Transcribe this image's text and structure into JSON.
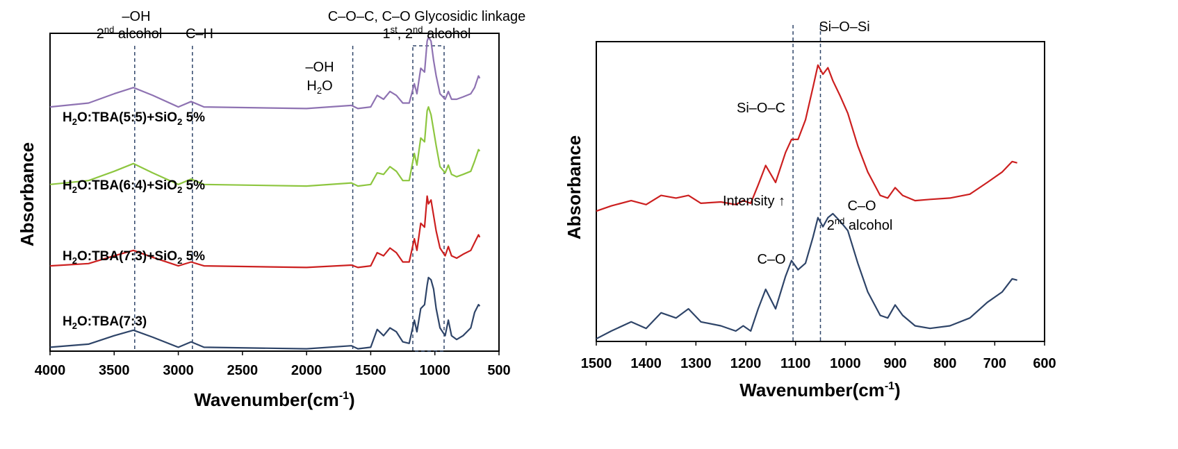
{
  "chart_data": [
    {
      "type": "line",
      "title": "",
      "xlabel": "Wavenumber(cm",
      "xlabel_sup": "-1",
      "xlabel_end": ")",
      "ylabel": "Absorbance",
      "xlim": [
        4000,
        500
      ],
      "x_reversed": true,
      "xticks": [
        "4000",
        "3500",
        "3000",
        "2500",
        "2000",
        "1500",
        "1000",
        "500"
      ],
      "ylim": [
        0,
        4.1
      ],
      "yticks_shown": false,
      "series": [
        {
          "name": "H2O:TBA(7:3)",
          "label_main": "H",
          "label_sub1": "2",
          "label_mid": "O:TBA(7:3)",
          "label_sub2": "",
          "label_end": "",
          "color": "#2e4468",
          "offset": 0,
          "points": [
            [
              4000,
              0.05
            ],
            [
              3700,
              0.09
            ],
            [
              3500,
              0.2
            ],
            [
              3350,
              0.27
            ],
            [
              3200,
              0.18
            ],
            [
              3000,
              0.05
            ],
            [
              2900,
              0.12
            ],
            [
              2800,
              0.05
            ],
            [
              2000,
              0.03
            ],
            [
              1650,
              0.07
            ],
            [
              1600,
              0.03
            ],
            [
              1500,
              0.05
            ],
            [
              1450,
              0.28
            ],
            [
              1400,
              0.2
            ],
            [
              1350,
              0.3
            ],
            [
              1300,
              0.25
            ],
            [
              1250,
              0.12
            ],
            [
              1200,
              0.1
            ],
            [
              1160,
              0.4
            ],
            [
              1140,
              0.25
            ],
            [
              1110,
              0.55
            ],
            [
              1080,
              0.6
            ],
            [
              1060,
              0.85
            ],
            [
              1050,
              0.95
            ],
            [
              1030,
              0.92
            ],
            [
              1010,
              0.8
            ],
            [
              990,
              0.55
            ],
            [
              960,
              0.3
            ],
            [
              920,
              0.2
            ],
            [
              895,
              0.4
            ],
            [
              870,
              0.2
            ],
            [
              830,
              0.15
            ],
            [
              780,
              0.2
            ],
            [
              720,
              0.3
            ],
            [
              690,
              0.5
            ],
            [
              660,
              0.6
            ],
            [
              650,
              0.58
            ]
          ]
        },
        {
          "name": "H2O:TBA(7:3)+SiO2 5%",
          "label_main": "H",
          "label_sub1": "2",
          "label_mid": "O:TBA(7:3)+SiO",
          "label_sub2": "2",
          "label_end": " 5%",
          "color": "#cc1f1f",
          "offset": 1.05,
          "points": [
            [
              4000,
              0.05
            ],
            [
              3700,
              0.08
            ],
            [
              3500,
              0.18
            ],
            [
              3350,
              0.25
            ],
            [
              3200,
              0.16
            ],
            [
              3000,
              0.05
            ],
            [
              2900,
              0.1
            ],
            [
              2800,
              0.05
            ],
            [
              2000,
              0.03
            ],
            [
              1650,
              0.06
            ],
            [
              1600,
              0.03
            ],
            [
              1500,
              0.05
            ],
            [
              1450,
              0.22
            ],
            [
              1400,
              0.18
            ],
            [
              1350,
              0.28
            ],
            [
              1300,
              0.22
            ],
            [
              1250,
              0.1
            ],
            [
              1200,
              0.1
            ],
            [
              1160,
              0.4
            ],
            [
              1140,
              0.25
            ],
            [
              1110,
              0.6
            ],
            [
              1080,
              0.55
            ],
            [
              1060,
              0.95
            ],
            [
              1050,
              0.85
            ],
            [
              1030,
              0.9
            ],
            [
              1010,
              0.7
            ],
            [
              990,
              0.5
            ],
            [
              960,
              0.28
            ],
            [
              920,
              0.18
            ],
            [
              895,
              0.3
            ],
            [
              870,
              0.18
            ],
            [
              830,
              0.15
            ],
            [
              780,
              0.2
            ],
            [
              720,
              0.25
            ],
            [
              690,
              0.35
            ],
            [
              660,
              0.45
            ],
            [
              650,
              0.42
            ]
          ]
        },
        {
          "name": "H2O:TBA(6:4)+SiO2 5%",
          "label_main": "H",
          "label_sub1": "2",
          "label_mid": "O:TBA(6:4)+SiO",
          "label_sub2": "2",
          "label_end": " 5%",
          "color": "#8dc63f",
          "offset": 2.1,
          "points": [
            [
              4000,
              0.05
            ],
            [
              3700,
              0.1
            ],
            [
              3500,
              0.22
            ],
            [
              3350,
              0.32
            ],
            [
              3200,
              0.2
            ],
            [
              3000,
              0.05
            ],
            [
              2900,
              0.12
            ],
            [
              2800,
              0.05
            ],
            [
              2000,
              0.03
            ],
            [
              1650,
              0.07
            ],
            [
              1600,
              0.03
            ],
            [
              1500,
              0.05
            ],
            [
              1450,
              0.2
            ],
            [
              1400,
              0.18
            ],
            [
              1350,
              0.28
            ],
            [
              1300,
              0.22
            ],
            [
              1250,
              0.1
            ],
            [
              1200,
              0.1
            ],
            [
              1160,
              0.45
            ],
            [
              1140,
              0.3
            ],
            [
              1110,
              0.65
            ],
            [
              1080,
              0.6
            ],
            [
              1060,
              1.0
            ],
            [
              1050,
              1.05
            ],
            [
              1030,
              0.95
            ],
            [
              1010,
              0.75
            ],
            [
              990,
              0.55
            ],
            [
              960,
              0.28
            ],
            [
              920,
              0.2
            ],
            [
              895,
              0.3
            ],
            [
              870,
              0.18
            ],
            [
              830,
              0.15
            ],
            [
              780,
              0.18
            ],
            [
              720,
              0.22
            ],
            [
              690,
              0.35
            ],
            [
              660,
              0.5
            ],
            [
              650,
              0.48
            ]
          ]
        },
        {
          "name": "H2O:TBA(5:5)+SiO2 5%",
          "label_main": "H",
          "label_sub1": "2",
          "label_mid": "O:TBA(5:5)+SiO",
          "label_sub2": "2",
          "label_end": " 5%",
          "color": "#8e72b2",
          "offset": 3.1,
          "points": [
            [
              4000,
              0.05
            ],
            [
              3700,
              0.1
            ],
            [
              3500,
              0.22
            ],
            [
              3350,
              0.3
            ],
            [
              3200,
              0.2
            ],
            [
              3000,
              0.05
            ],
            [
              2900,
              0.12
            ],
            [
              2800,
              0.05
            ],
            [
              2000,
              0.03
            ],
            [
              1650,
              0.07
            ],
            [
              1600,
              0.03
            ],
            [
              1500,
              0.05
            ],
            [
              1450,
              0.2
            ],
            [
              1400,
              0.15
            ],
            [
              1350,
              0.25
            ],
            [
              1300,
              0.2
            ],
            [
              1250,
              0.1
            ],
            [
              1200,
              0.1
            ],
            [
              1160,
              0.35
            ],
            [
              1140,
              0.22
            ],
            [
              1110,
              0.55
            ],
            [
              1080,
              0.5
            ],
            [
              1060,
              0.9
            ],
            [
              1050,
              0.95
            ],
            [
              1030,
              0.9
            ],
            [
              1010,
              0.65
            ],
            [
              990,
              0.45
            ],
            [
              960,
              0.22
            ],
            [
              920,
              0.15
            ],
            [
              895,
              0.25
            ],
            [
              870,
              0.15
            ],
            [
              830,
              0.15
            ],
            [
              780,
              0.18
            ],
            [
              720,
              0.22
            ],
            [
              690,
              0.3
            ],
            [
              660,
              0.45
            ],
            [
              650,
              0.42
            ]
          ]
        }
      ],
      "reference_lines": [
        3340,
        2890,
        1640,
        1190,
        960
      ],
      "annotations": [
        {
          "text": "–OH",
          "line2": "2",
          "line2_sup": "nd",
          "line2_end": " alcohol"
        },
        {
          "text": "C–H"
        },
        {
          "text": "–OH",
          "line2": "H",
          "line2_sub": "2",
          "line2_end": "O"
        },
        {
          "text": "C–O–C, C–O Glycosidic linkage",
          "line2": "1",
          "line2_sup": "st",
          "line2_mid": ", 2",
          "line2_sup2": "nd",
          "line2_end": " alcohol"
        }
      ]
    },
    {
      "type": "line",
      "title": "",
      "xlabel": "Wavenumber(cm",
      "xlabel_sup": "-1",
      "xlabel_end": ")",
      "ylabel": "Absorbance",
      "xlim": [
        1500,
        600
      ],
      "x_reversed": true,
      "xticks": [
        "1500",
        "1400",
        "1300",
        "1200",
        "1100",
        "1000",
        "900",
        "800",
        "700",
        "600"
      ],
      "ylim": [
        0,
        2.3
      ],
      "yticks_shown": false,
      "series": [
        {
          "name": "H2O:TBA(7:3)",
          "color": "#2e4468",
          "offset": 0,
          "points": [
            [
              1500,
              0.02
            ],
            [
              1470,
              0.08
            ],
            [
              1430,
              0.15
            ],
            [
              1400,
              0.1
            ],
            [
              1370,
              0.22
            ],
            [
              1340,
              0.18
            ],
            [
              1315,
              0.25
            ],
            [
              1290,
              0.15
            ],
            [
              1250,
              0.12
            ],
            [
              1220,
              0.08
            ],
            [
              1205,
              0.12
            ],
            [
              1190,
              0.08
            ],
            [
              1175,
              0.25
            ],
            [
              1160,
              0.4
            ],
            [
              1140,
              0.25
            ],
            [
              1120,
              0.5
            ],
            [
              1108,
              0.62
            ],
            [
              1095,
              0.55
            ],
            [
              1080,
              0.6
            ],
            [
              1065,
              0.8
            ],
            [
              1055,
              0.95
            ],
            [
              1045,
              0.88
            ],
            [
              1035,
              0.95
            ],
            [
              1025,
              0.98
            ],
            [
              1010,
              0.92
            ],
            [
              995,
              0.85
            ],
            [
              975,
              0.6
            ],
            [
              955,
              0.38
            ],
            [
              930,
              0.2
            ],
            [
              915,
              0.18
            ],
            [
              900,
              0.28
            ],
            [
              885,
              0.2
            ],
            [
              860,
              0.12
            ],
            [
              830,
              0.1
            ],
            [
              790,
              0.12
            ],
            [
              750,
              0.18
            ],
            [
              715,
              0.3
            ],
            [
              685,
              0.38
            ],
            [
              665,
              0.48
            ],
            [
              655,
              0.47
            ]
          ]
        },
        {
          "name": "H2O:TBA(7:3)+SiO2 5%",
          "color": "#cc1f1f",
          "offset": 1.0,
          "points": [
            [
              1500,
              0.0
            ],
            [
              1470,
              0.04
            ],
            [
              1430,
              0.08
            ],
            [
              1400,
              0.05
            ],
            [
              1370,
              0.12
            ],
            [
              1340,
              0.1
            ],
            [
              1315,
              0.12
            ],
            [
              1290,
              0.06
            ],
            [
              1250,
              0.07
            ],
            [
              1220,
              0.05
            ],
            [
              1205,
              0.08
            ],
            [
              1190,
              0.06
            ],
            [
              1175,
              0.2
            ],
            [
              1160,
              0.35
            ],
            [
              1140,
              0.22
            ],
            [
              1120,
              0.45
            ],
            [
              1108,
              0.55
            ],
            [
              1095,
              0.55
            ],
            [
              1080,
              0.7
            ],
            [
              1065,
              0.95
            ],
            [
              1055,
              1.12
            ],
            [
              1045,
              1.05
            ],
            [
              1035,
              1.1
            ],
            [
              1025,
              1.0
            ],
            [
              1010,
              0.88
            ],
            [
              995,
              0.75
            ],
            [
              975,
              0.5
            ],
            [
              955,
              0.3
            ],
            [
              930,
              0.12
            ],
            [
              915,
              0.1
            ],
            [
              900,
              0.18
            ],
            [
              885,
              0.12
            ],
            [
              860,
              0.08
            ],
            [
              830,
              0.09
            ],
            [
              790,
              0.1
            ],
            [
              750,
              0.13
            ],
            [
              715,
              0.22
            ],
            [
              685,
              0.3
            ],
            [
              665,
              0.38
            ],
            [
              655,
              0.37
            ]
          ]
        }
      ],
      "reference_lines": [
        1105,
        1050
      ],
      "annotations": [
        {
          "text": "Si–O–Si"
        },
        {
          "text": "Si–O–C"
        },
        {
          "text": "Intensity ↑"
        },
        {
          "text": "C–O"
        },
        {
          "text": "C–O"
        },
        {
          "text": "2",
          "sup": "nd",
          "end": " alcohol"
        }
      ]
    }
  ]
}
